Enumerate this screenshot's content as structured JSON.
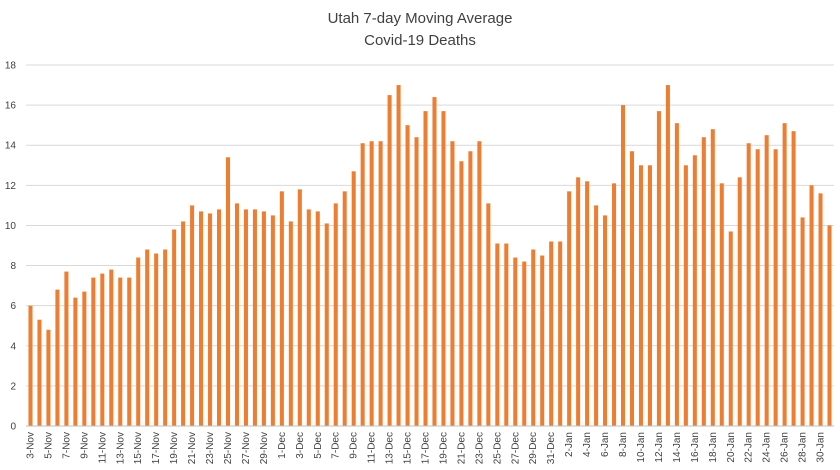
{
  "chart_data": {
    "type": "bar",
    "title": "Utah 7-day Moving Average",
    "subtitle": "Covid-19 Deaths",
    "xlabel": "",
    "ylabel": "",
    "ylim": [
      0,
      18
    ],
    "yticks": [
      0,
      2,
      4,
      6,
      8,
      10,
      12,
      14,
      16,
      18
    ],
    "grid": true,
    "bar_color": "#ED7D31",
    "categories": [
      "3-Nov",
      "4-Nov",
      "5-Nov",
      "6-Nov",
      "7-Nov",
      "8-Nov",
      "9-Nov",
      "10-Nov",
      "11-Nov",
      "12-Nov",
      "13-Nov",
      "14-Nov",
      "15-Nov",
      "16-Nov",
      "17-Nov",
      "18-Nov",
      "19-Nov",
      "20-Nov",
      "21-Nov",
      "22-Nov",
      "23-Nov",
      "24-Nov",
      "25-Nov",
      "26-Nov",
      "27-Nov",
      "28-Nov",
      "29-Nov",
      "30-Nov",
      "1-Dec",
      "2-Dec",
      "3-Dec",
      "4-Dec",
      "5-Dec",
      "6-Dec",
      "7-Dec",
      "8-Dec",
      "9-Dec",
      "10-Dec",
      "11-Dec",
      "12-Dec",
      "13-Dec",
      "14-Dec",
      "15-Dec",
      "16-Dec",
      "17-Dec",
      "18-Dec",
      "19-Dec",
      "20-Dec",
      "21-Dec",
      "22-Dec",
      "23-Dec",
      "24-Dec",
      "25-Dec",
      "26-Dec",
      "27-Dec",
      "28-Dec",
      "29-Dec",
      "30-Dec",
      "31-Dec",
      "1-Jan",
      "2-Jan",
      "3-Jan",
      "4-Jan",
      "5-Jan",
      "6-Jan",
      "7-Jan",
      "8-Jan",
      "9-Jan",
      "10-Jan",
      "11-Jan",
      "12-Jan",
      "13-Jan",
      "14-Jan",
      "15-Jan",
      "16-Jan",
      "17-Jan",
      "18-Jan",
      "19-Jan",
      "20-Jan",
      "21-Jan",
      "22-Jan",
      "23-Jan",
      "24-Jan",
      "25-Jan",
      "26-Jan",
      "27-Jan",
      "28-Jan",
      "29-Jan",
      "30-Jan",
      "31-Jan"
    ],
    "tick_labels": [
      "3-Nov",
      "5-Nov",
      "7-Nov",
      "9-Nov",
      "11-Nov",
      "13-Nov",
      "15-Nov",
      "17-Nov",
      "19-Nov",
      "21-Nov",
      "23-Nov",
      "25-Nov",
      "27-Nov",
      "29-Nov",
      "1-Dec",
      "3-Dec",
      "5-Dec",
      "7-Dec",
      "9-Dec",
      "11-Dec",
      "13-Dec",
      "15-Dec",
      "17-Dec",
      "19-Dec",
      "21-Dec",
      "23-Dec",
      "25-Dec",
      "27-Dec",
      "29-Dec",
      "31-Dec",
      "2-Jan",
      "4-Jan",
      "6-Jan",
      "8-Jan",
      "10-Jan",
      "12-Jan",
      "14-Jan",
      "16-Jan",
      "18-Jan",
      "20-Jan",
      "22-Jan",
      "24-Jan",
      "26-Jan",
      "28-Jan",
      "30-Jan"
    ],
    "values": [
      6.0,
      5.3,
      4.8,
      6.8,
      7.7,
      6.4,
      6.7,
      7.4,
      7.6,
      7.8,
      7.4,
      7.4,
      8.4,
      8.8,
      8.6,
      8.8,
      9.8,
      10.2,
      11.0,
      10.7,
      10.6,
      10.8,
      13.4,
      11.1,
      10.8,
      10.8,
      10.7,
      10.5,
      11.7,
      10.2,
      11.8,
      10.8,
      10.7,
      10.1,
      11.1,
      11.7,
      12.7,
      14.1,
      14.2,
      14.2,
      16.5,
      17.0,
      15.0,
      14.4,
      15.7,
      16.4,
      15.7,
      14.2,
      13.2,
      13.7,
      14.2,
      11.1,
      9.1,
      9.1,
      8.4,
      8.2,
      8.8,
      8.5,
      9.2,
      9.2,
      11.7,
      12.4,
      12.2,
      11.0,
      10.5,
      12.1,
      16.0,
      13.7,
      13.0,
      13.0,
      15.7,
      17.0,
      15.1,
      13.0,
      13.5,
      14.4,
      14.8,
      12.1,
      9.7,
      12.4,
      14.1,
      13.8,
      14.5,
      13.8,
      15.1,
      14.7,
      10.4,
      12.0,
      11.6,
      10.0
    ]
  }
}
